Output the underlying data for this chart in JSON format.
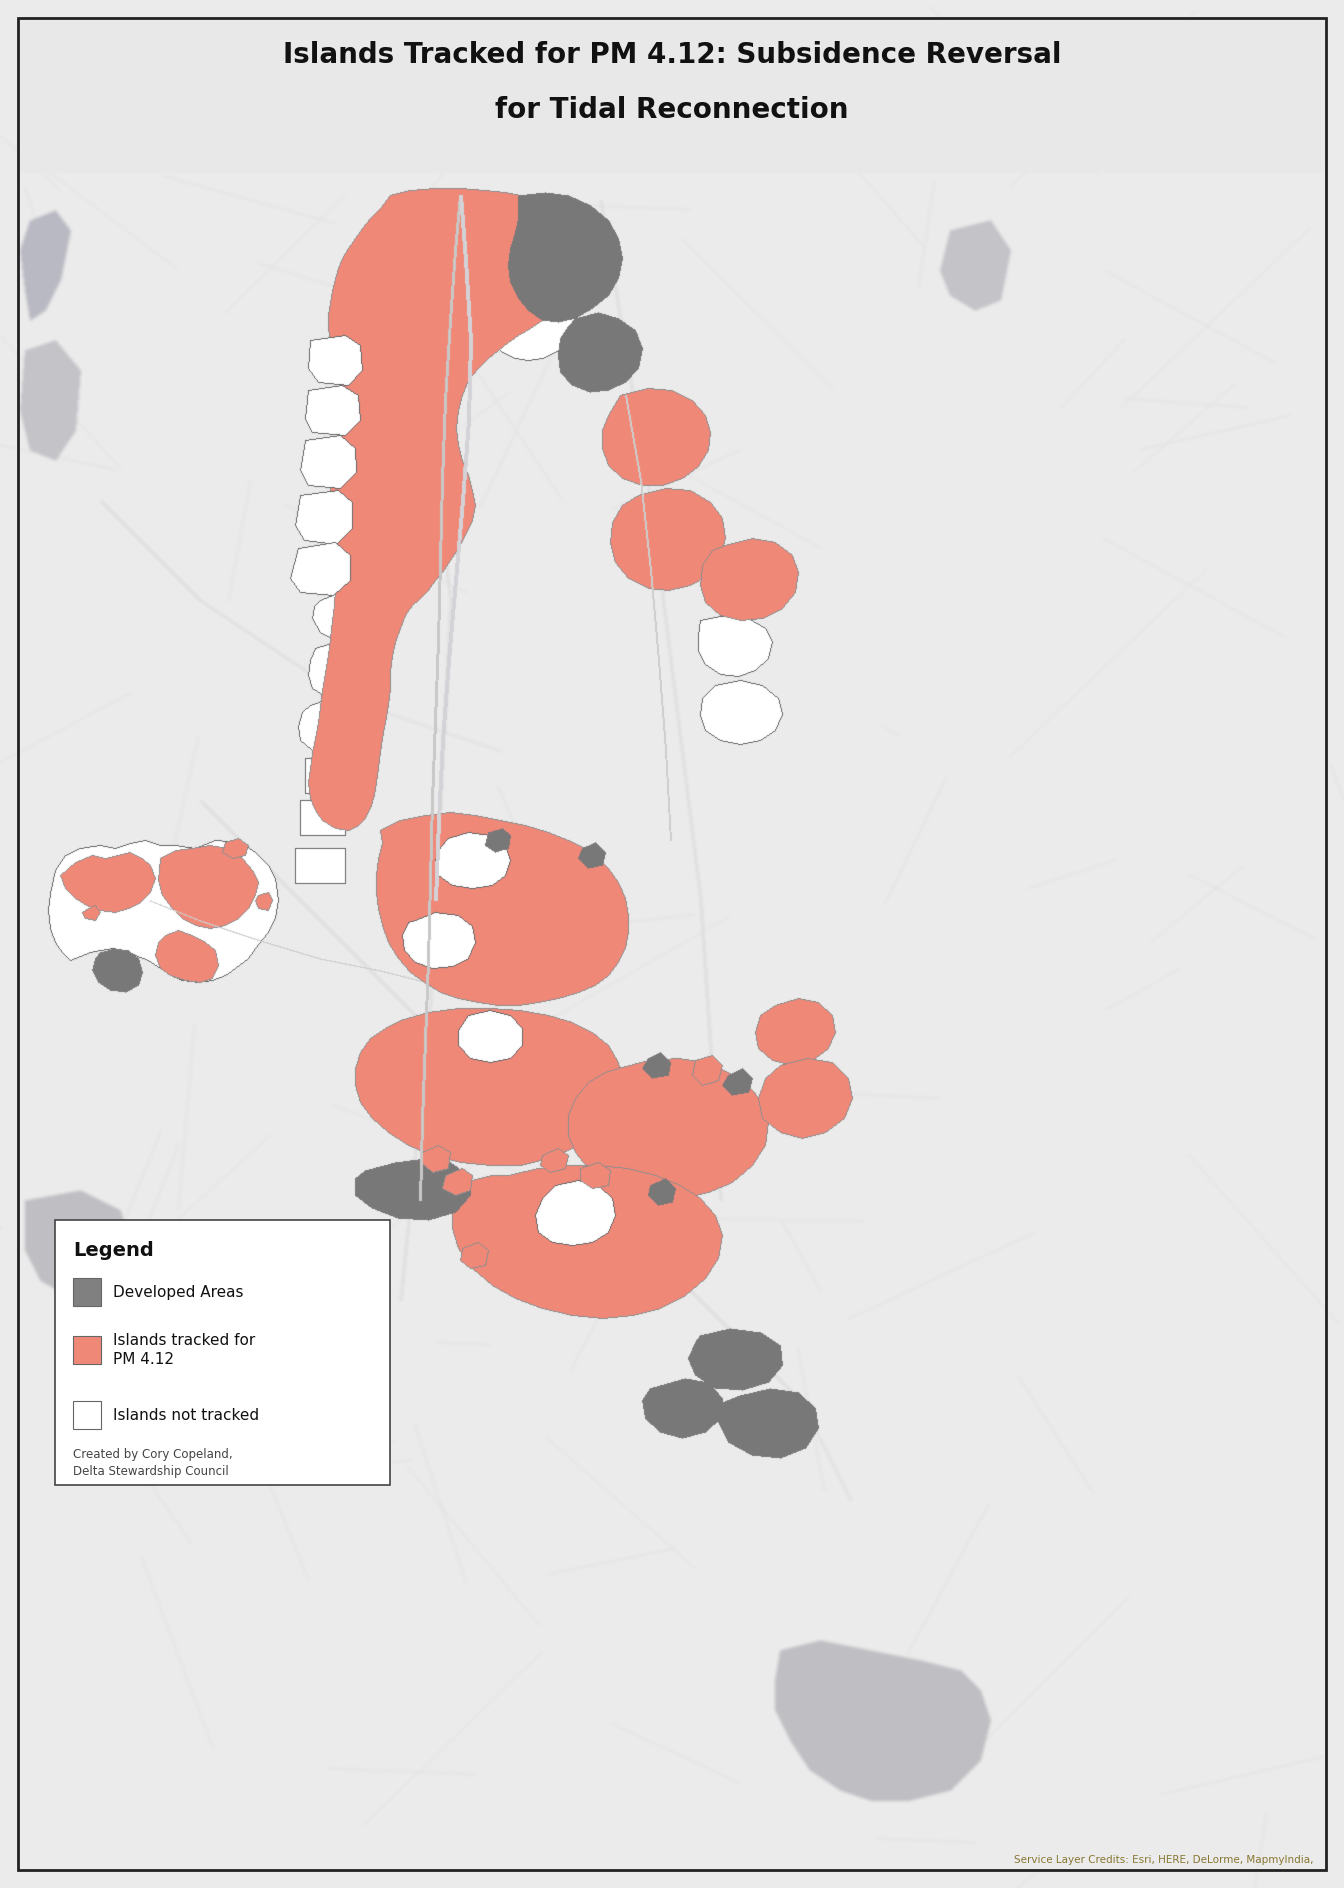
{
  "title_line1": "Islands Tracked for PM 4.12: Subsidence Reversal",
  "title_line2": "for Tidal Reconnection",
  "title_fontsize": 20,
  "bg_color": "#ebebeb",
  "map_bg": "#e8e8e8",
  "salmon": "#f08878",
  "dark_gray": "#808080",
  "med_gray": "#a8a8a8",
  "light_gray": "#c8c8c8",
  "white": "#ffffff",
  "edge_dark": "#444444",
  "edge_thin": "#666666",
  "road_white": "#f8f8f8",
  "credit_text": "Service Layer Credits: Esri, HERE, DeLorme, MapmyIndia,",
  "created_text": "Created by Cory Copeland,\nDelta Stewardship Council",
  "legend_title": "Legend",
  "leg_items": [
    "Developed Areas",
    "Islands tracked for\nPM 4.12",
    "Islands not tracked"
  ],
  "leg_colors": [
    "#808080",
    "#f08878",
    "#ffffff"
  ],
  "title_bg": "#e8e8e8"
}
